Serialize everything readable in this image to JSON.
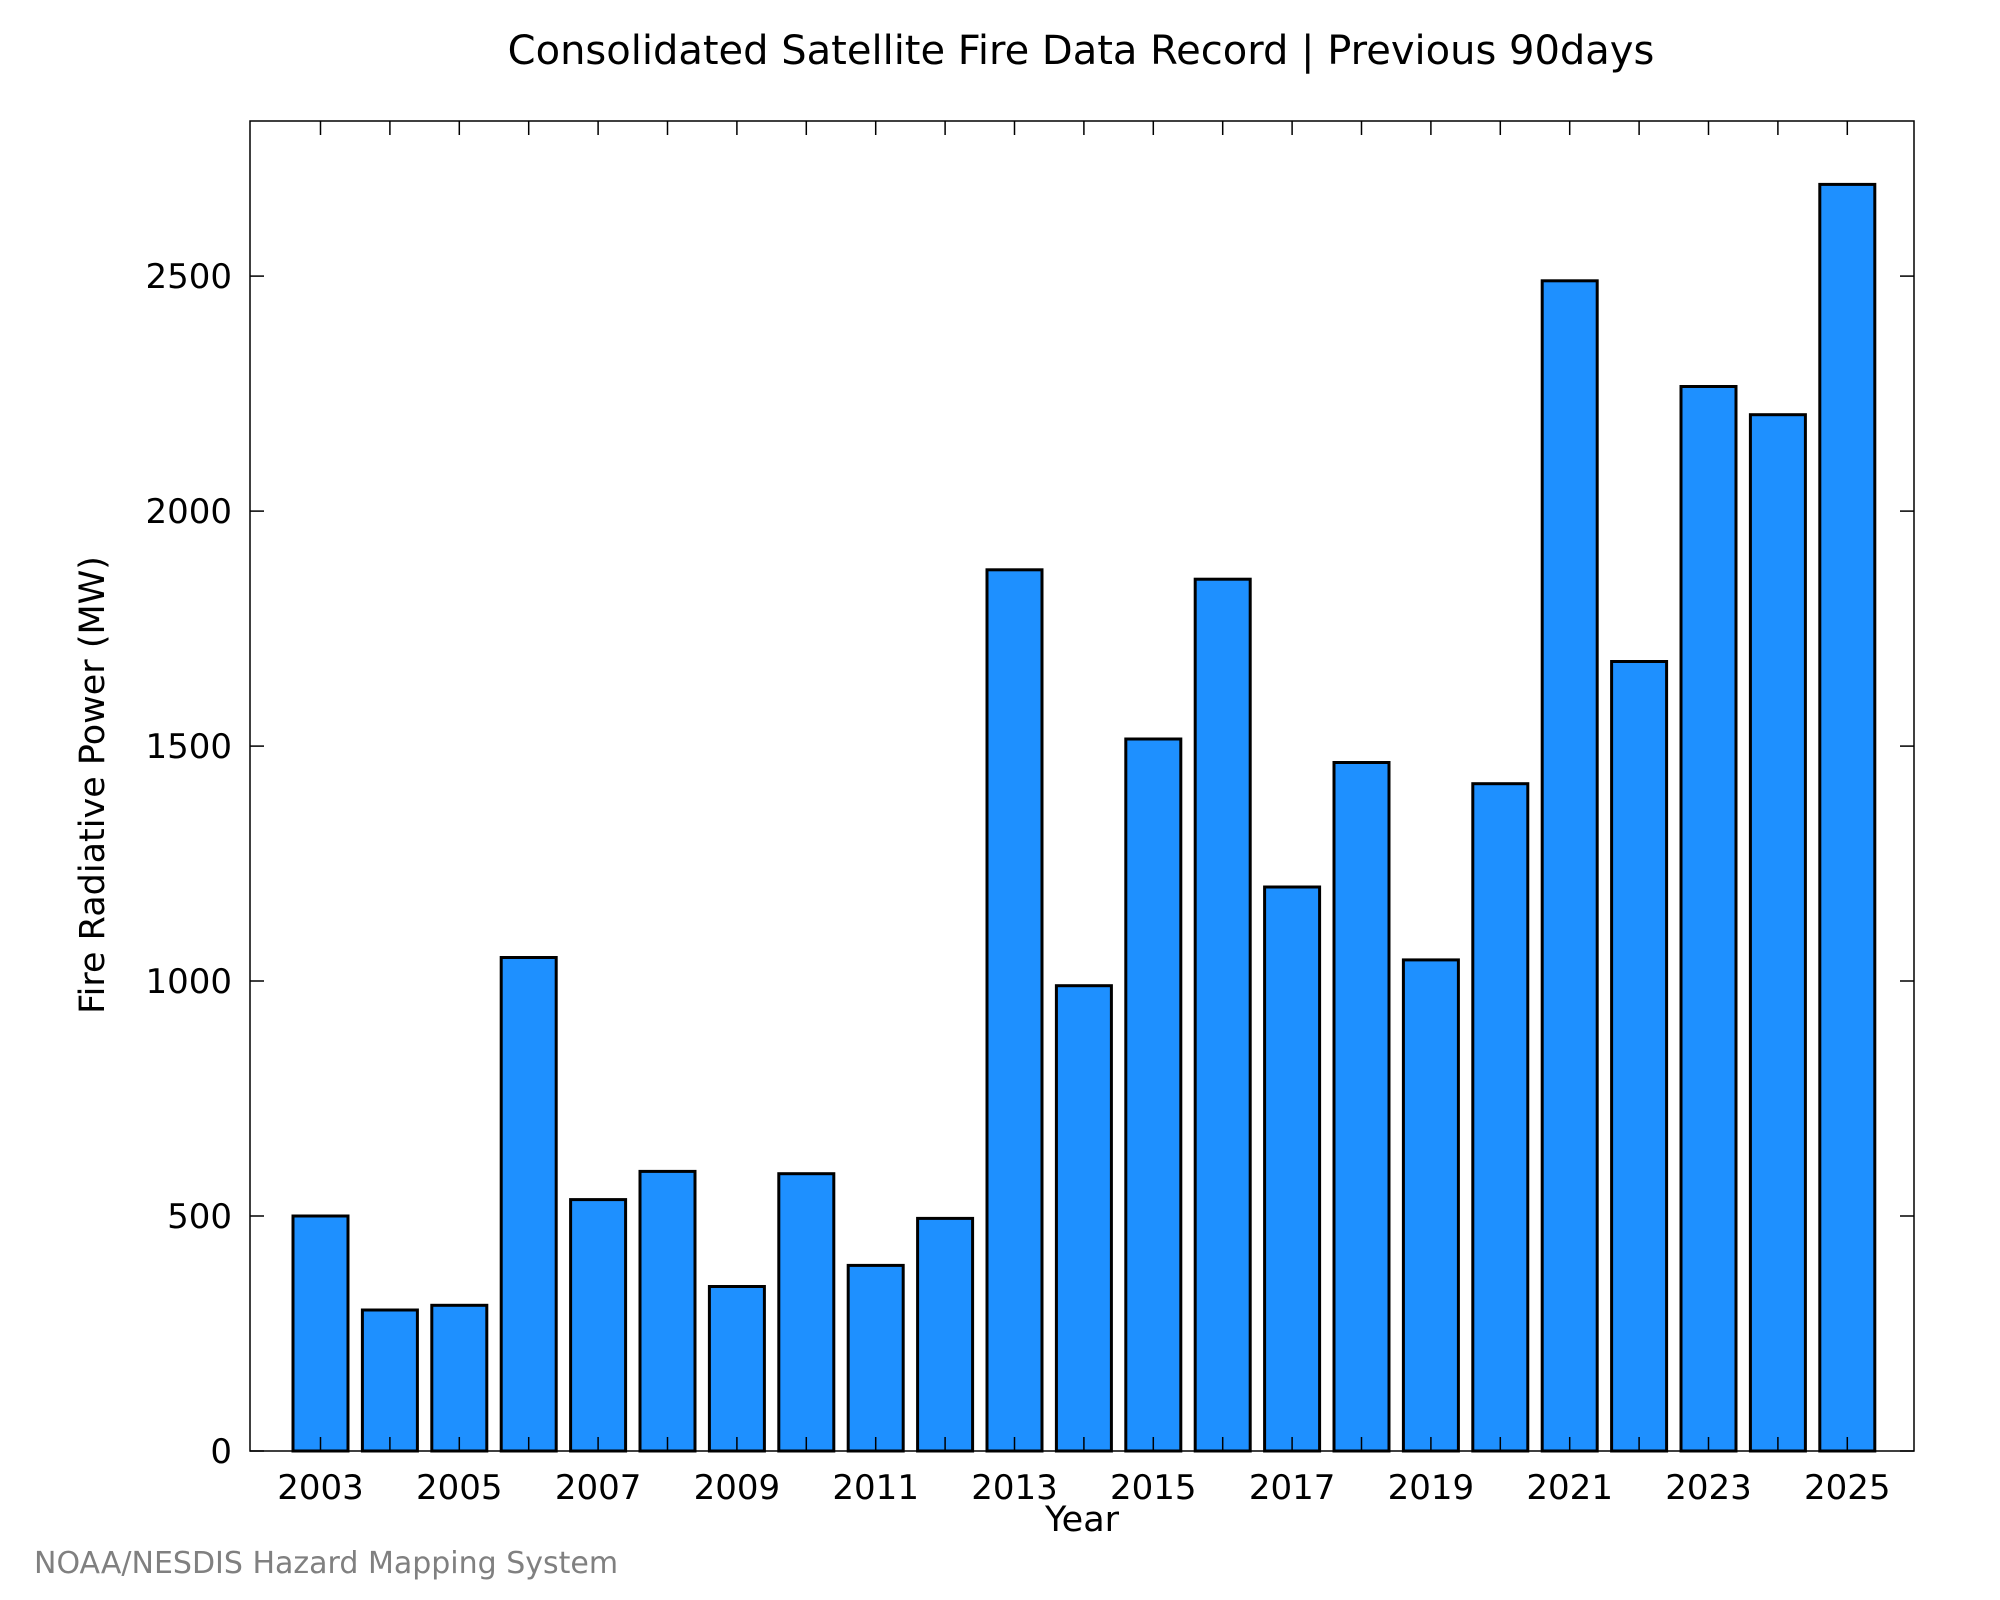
{
  "chart_data": {
    "type": "bar",
    "title": "Consolidated Satellite Fire Data Record | Previous 90days",
    "xlabel": "Year",
    "ylabel": "Fire Radiative Power (MW)",
    "categories": [
      "2003",
      "2004",
      "2005",
      "2006",
      "2007",
      "2008",
      "2009",
      "2010",
      "2011",
      "2012",
      "2013",
      "2014",
      "2015",
      "2016",
      "2017",
      "2018",
      "2019",
      "2020",
      "2021",
      "2022",
      "2023",
      "2024",
      "2025"
    ],
    "values": [
      500,
      300,
      310,
      1050,
      535,
      595,
      350,
      590,
      395,
      495,
      1875,
      990,
      1515,
      1855,
      1200,
      1465,
      1045,
      1420,
      2490,
      1680,
      2265,
      2205,
      2695
    ],
    "x_tick_labels": [
      "2003",
      "2005",
      "2007",
      "2009",
      "2011",
      "2013",
      "2015",
      "2017",
      "2019",
      "2021",
      "2023",
      "2025"
    ],
    "y_tick_labels": [
      "0",
      "500",
      "1000",
      "1500",
      "2000",
      "2500"
    ],
    "y_ticks": [
      0,
      500,
      1000,
      1500,
      2000,
      2500
    ],
    "ylim": [
      0,
      2830
    ],
    "bar_color": "#1e90ff",
    "grid": false,
    "legend": "none"
  },
  "credit": "NOAA/NESDIS Hazard Mapping System"
}
